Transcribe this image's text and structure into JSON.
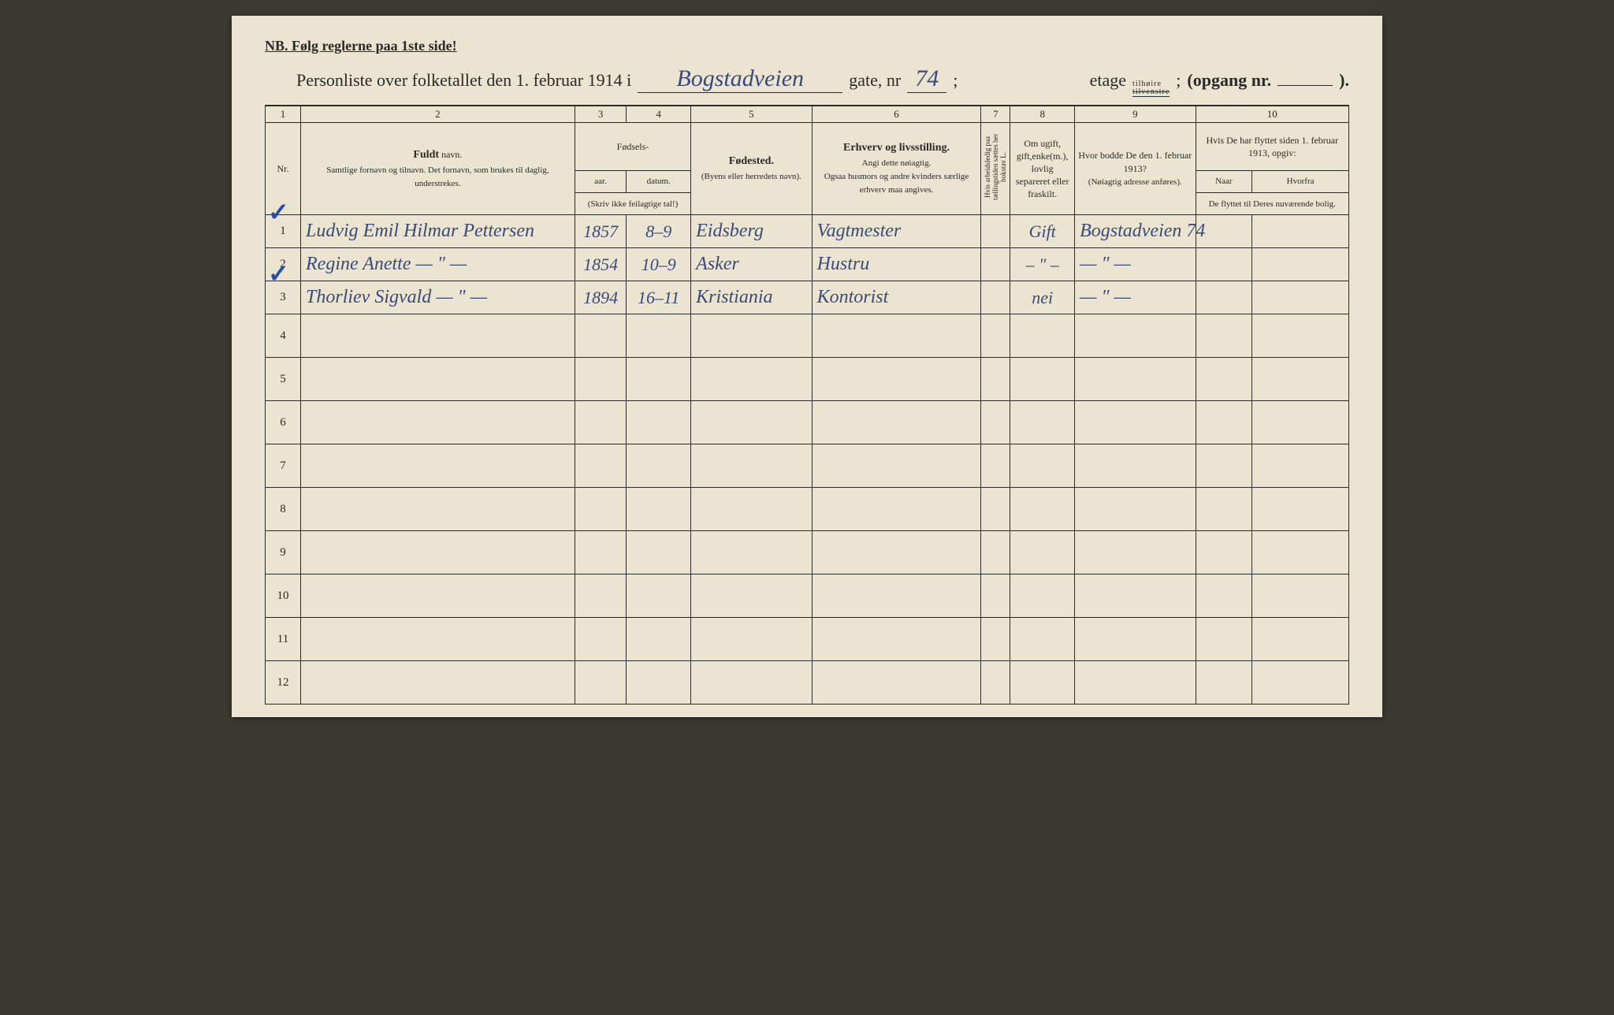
{
  "nb_text": "NB.  Følg reglerne paa 1ste side!",
  "title_prefix": "Personliste over folketallet den 1. februar 1914 i",
  "street_name": "Bogstadveien",
  "gate_label": "gate, nr",
  "gate_nr": "74",
  "semicolon": ";",
  "etage_label": "etage",
  "etage_top": "tilhøire",
  "etage_bottom": "tilvenstre",
  "opgang_label": "(opgang nr.",
  "opgang_close": ").",
  "col_numbers": [
    "1",
    "2",
    "3",
    "4",
    "5",
    "6",
    "7",
    "8",
    "9",
    "10"
  ],
  "headers": {
    "nr": "Nr.",
    "name_main": "Fuldt",
    "name_sub": " navn.",
    "name_detail": "Samtlige fornavn og tilnavn. Det fornavn, som brukes til daglig, understrekes.",
    "birth_main": "Fødsels-",
    "birth_year": "aar.",
    "birth_date": "datum.",
    "birth_note": "(Skriv ikke feilagtige tal!)",
    "birthplace_main": "Fødested.",
    "birthplace_sub": "(Byens eller herredets navn).",
    "occupation_main": "Erhverv og livsstilling.",
    "occupation_sub1": "Angi dette nøiagtig.",
    "occupation_sub2": "Ogsaa husmors og andre kvinders særlige erhverv maa angives.",
    "col7": "Hvis arbeidsledig paa tællingstiden sættes her bokstav L.",
    "col8": "Om ugift, gift,enke(m.), lovlig separeret eller fraskilt.",
    "col9_main": "Hvor bodde De den 1. februar 1913?",
    "col9_sub": "(Nøiagtig adresse anføres).",
    "col10_main": "Hvis De har flyttet siden 1. februar 1913, opgiv:",
    "col10_naar": "Naar",
    "col10_hvorfra": "Hvorfra",
    "col10_sub": "De flyttet til Deres nuværende bolig."
  },
  "rows": [
    {
      "nr": "1",
      "name": "Ludvig Emil Hilmar Pettersen",
      "year": "1857",
      "date": "8–9",
      "birthplace": "Eidsberg",
      "occupation": "Vagtmester",
      "col7": "",
      "col8": "Gift",
      "col9": "Bogstadveien 74",
      "col10a": "",
      "col10b": ""
    },
    {
      "nr": "2",
      "name": "Regine Anette  — \" —",
      "year": "1854",
      "date": "10–9",
      "birthplace": "Asker",
      "occupation": "Hustru",
      "col7": "",
      "col8": "– \" –",
      "col9": "— \" —",
      "col10a": "",
      "col10b": ""
    },
    {
      "nr": "3",
      "name": "Thorliev Sigvald  — \" —",
      "year": "1894",
      "date": "16–11",
      "birthplace": "Kristiania",
      "occupation": "Kontorist",
      "col7": "",
      "col8": "nei",
      "col9": "— \" —",
      "col10a": "",
      "col10b": ""
    }
  ],
  "empty_rows": [
    "4",
    "5",
    "6",
    "7",
    "8",
    "9",
    "10",
    "11",
    "12"
  ],
  "colors": {
    "paper": "#ebe4d0",
    "ink_print": "#2a2a2a",
    "ink_hand": "#3a4a7a",
    "background": "#3a3a32"
  }
}
